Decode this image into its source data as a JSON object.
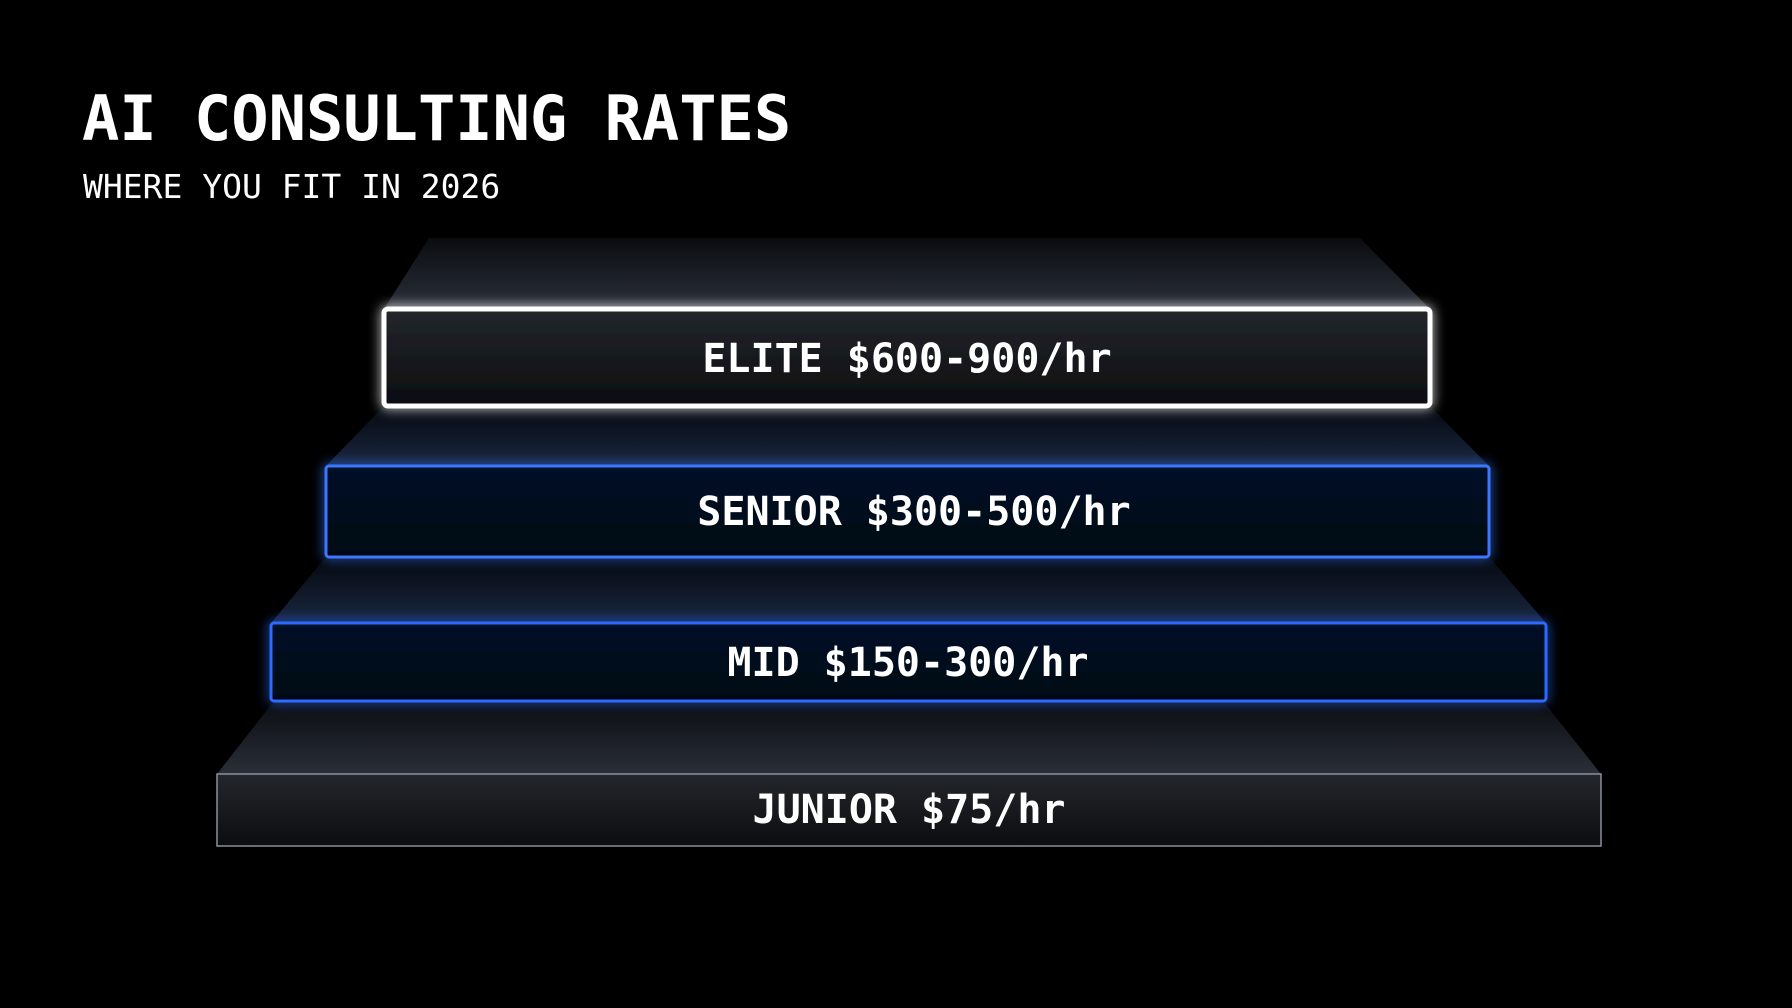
{
  "header": {
    "title": "AI CONSULTING RATES",
    "subtitle": "WHERE YOU FIT IN 2026"
  },
  "tiers": [
    {
      "label": "ELITE",
      "rate": "$600-900/hr"
    },
    {
      "label": "SENIOR",
      "rate": "$300-500/hr"
    },
    {
      "label": "MID",
      "rate": "$150-300/hr"
    },
    {
      "label": "JUNIOR",
      "rate": "$75/hr"
    }
  ]
}
